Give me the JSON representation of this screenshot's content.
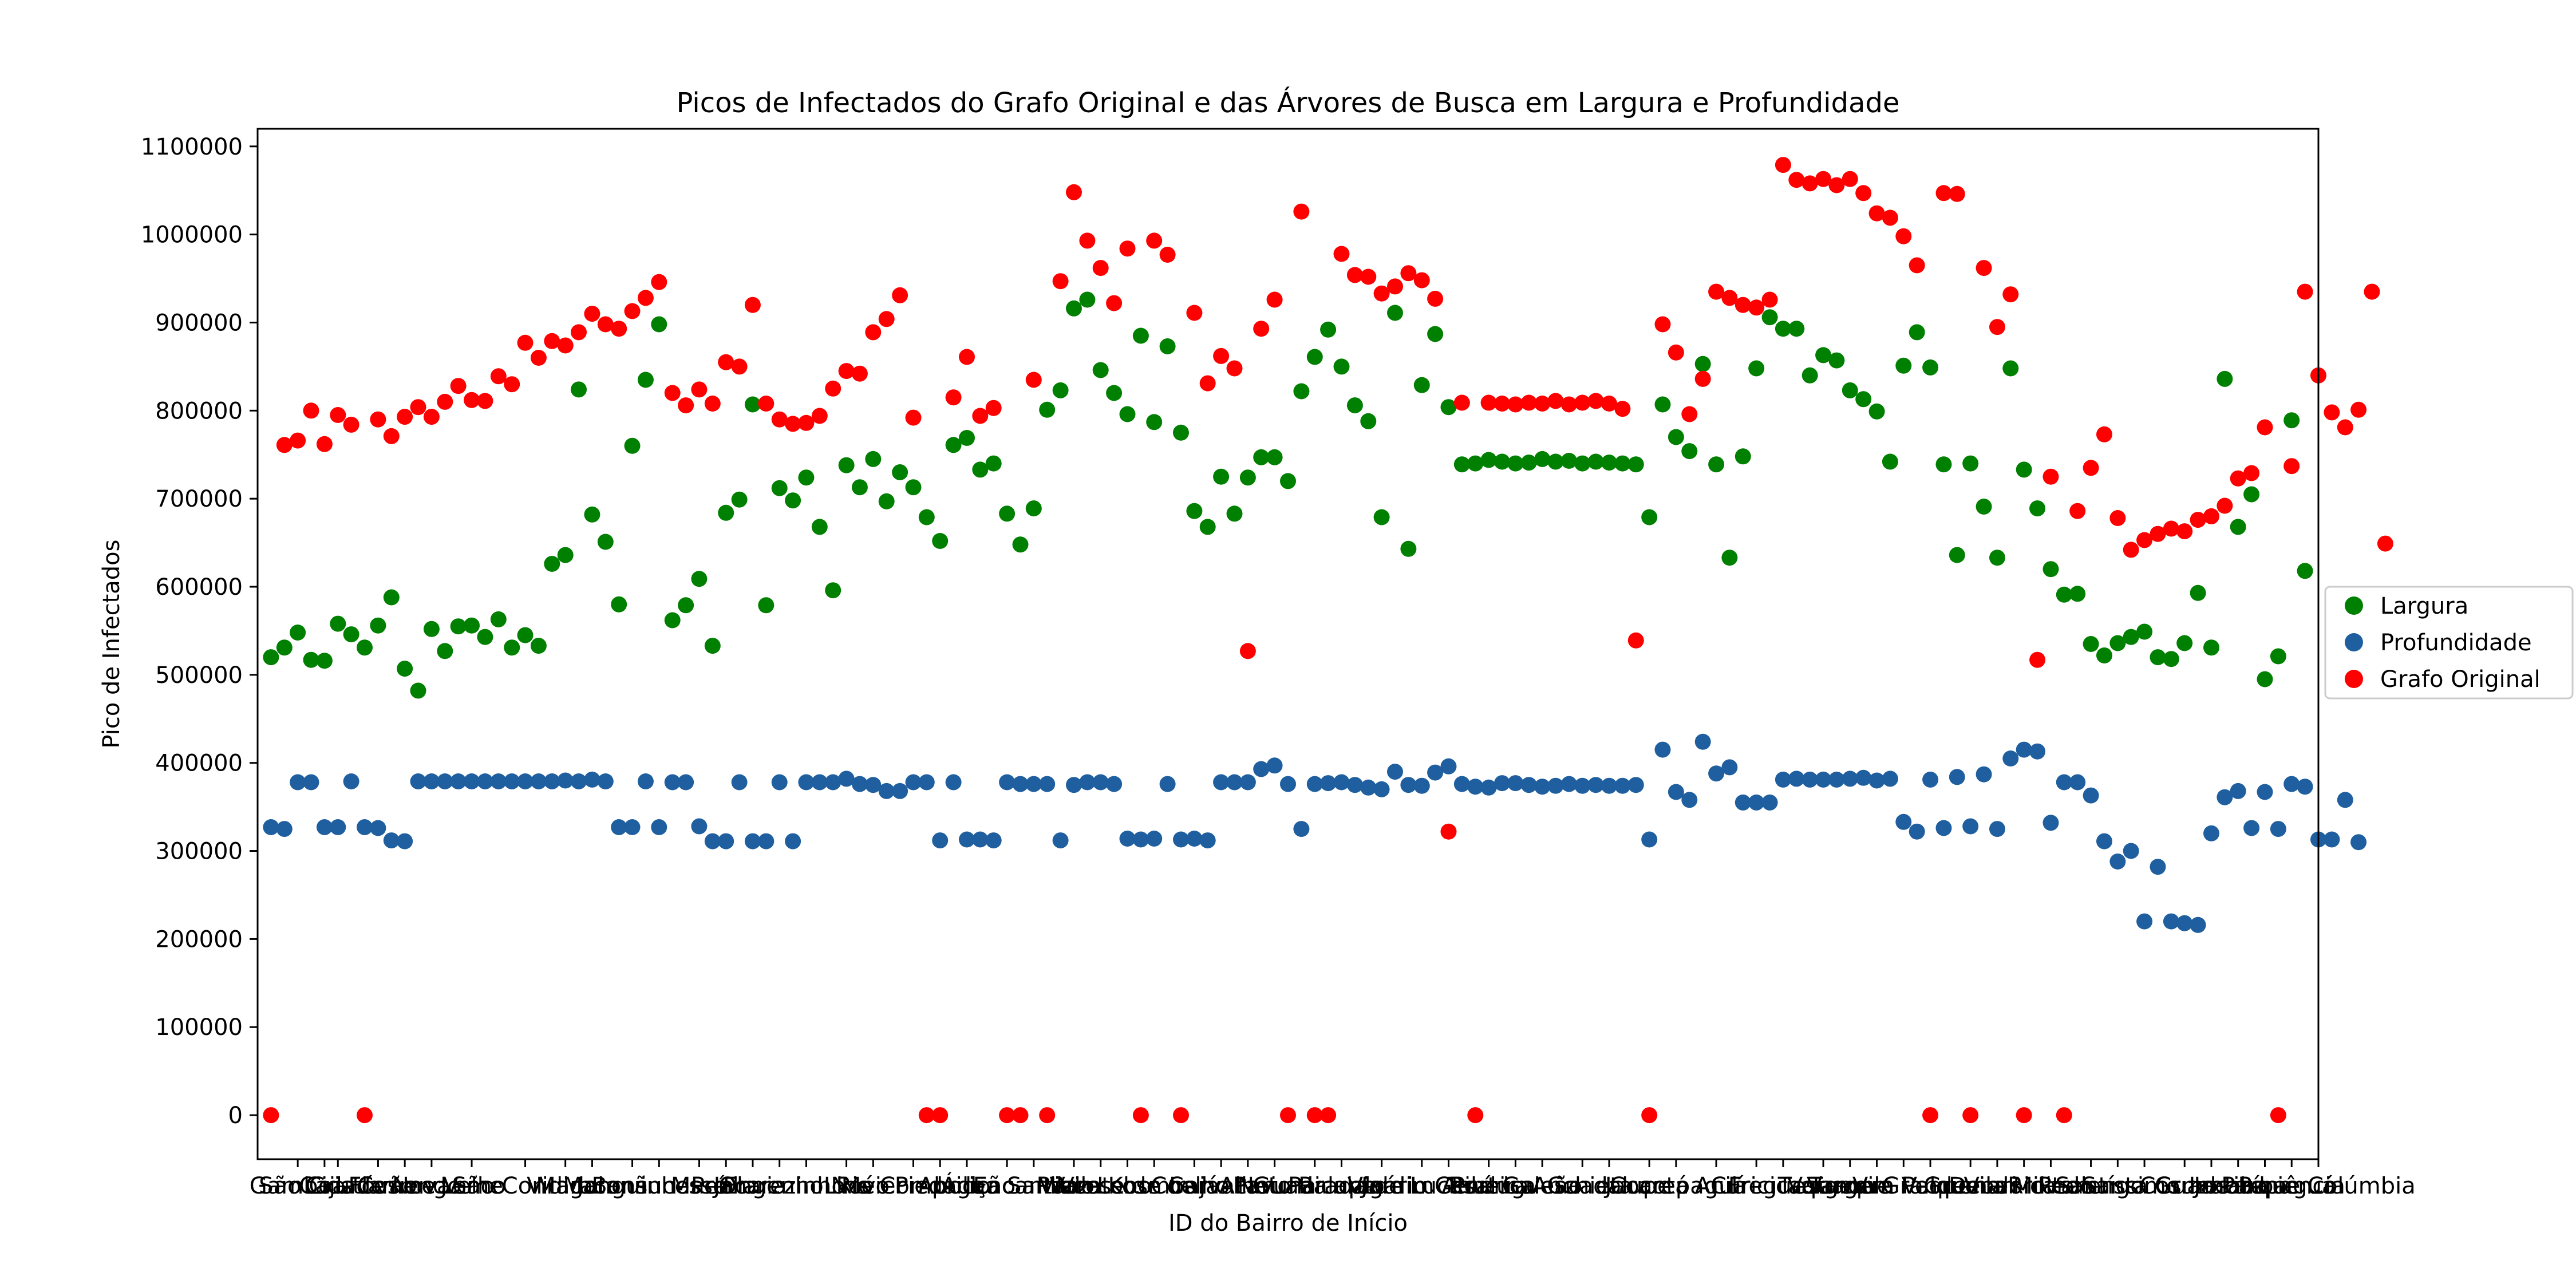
{
  "chart_data": {
    "type": "scatter",
    "title": "Picos de Infectados do Grafo Original e das Árvores de Busca em Largura e Profundidade",
    "xlabel": "ID do Bairro de Início",
    "ylabel": "Pico de Infectados",
    "ylim": [
      -50000,
      1120000
    ],
    "yticks": [
      0,
      100000,
      200000,
      300000,
      400000,
      500000,
      600000,
      700000,
      800000,
      900000,
      1000000,
      1100000
    ],
    "ytick_labels": [
      "0",
      "100000",
      "200000",
      "300000",
      "400000",
      "500000",
      "600000",
      "700000",
      "800000",
      "900000",
      "1000000",
      "1100000"
    ],
    "xticks": [
      {
        "x": 3,
        "label": "Gamboa"
      },
      {
        "x": 5,
        "label": "Caju"
      },
      {
        "x": 6,
        "label": "São Cristóvão"
      },
      {
        "x": 9,
        "label": "Cidade Nova"
      },
      {
        "x": 11,
        "label": "Flamengo"
      },
      {
        "x": 13,
        "label": "Cosme Velho"
      },
      {
        "x": 16,
        "label": "Leme"
      },
      {
        "x": 20,
        "label": "São Conrado"
      },
      {
        "x": 23,
        "label": "Vidigal"
      },
      {
        "x": 25,
        "label": "Maracanã"
      },
      {
        "x": 28,
        "label": "Manguinhos"
      },
      {
        "x": 30,
        "label": "Bonsucesso"
      },
      {
        "x": 33,
        "label": "Maré"
      },
      {
        "x": 35,
        "label": "Penha"
      },
      {
        "x": 37,
        "label": "Olaria"
      },
      {
        "x": 39,
        "label": "Jacarezinho"
      },
      {
        "x": 41,
        "label": "Engenho Novo"
      },
      {
        "x": 44,
        "label": "Lins"
      },
      {
        "x": 46,
        "label": "Méier"
      },
      {
        "x": 49,
        "label": "Rio Comprido"
      },
      {
        "x": 51,
        "label": "Piedade"
      },
      {
        "x": 53,
        "label": "Abolição"
      },
      {
        "x": 56,
        "label": "Água Santa"
      },
      {
        "x": 58,
        "label": "Encantado"
      },
      {
        "x": 61,
        "label": "Pilares"
      },
      {
        "x": 63,
        "label": "Vaz Lobo"
      },
      {
        "x": 65,
        "label": "Vila Kosmos"
      },
      {
        "x": 67,
        "label": "Vicente de Carvalho"
      },
      {
        "x": 70,
        "label": "Irajá"
      },
      {
        "x": 72,
        "label": "Coelho Neto"
      },
      {
        "x": 74,
        "label": "Acari"
      },
      {
        "x": 76,
        "label": "Pavuna"
      },
      {
        "x": 79,
        "label": "Guadalupe"
      },
      {
        "x": 81,
        "label": "Ricardo"
      },
      {
        "x": 84,
        "label": "Parada de Lucas"
      },
      {
        "x": 87,
        "label": "Vigário Geral"
      },
      {
        "x": 89,
        "label": "Jardim América"
      },
      {
        "x": 92,
        "label": "Ribeira"
      },
      {
        "x": 94,
        "label": "Portuguesa"
      },
      {
        "x": 96,
        "label": "Galeão"
      },
      {
        "x": 99,
        "label": "Anchieta"
      },
      {
        "x": 101,
        "label": "Guadalupe"
      },
      {
        "x": 104,
        "label": "Cocotá"
      },
      {
        "x": 106,
        "label": "Jacarepaguá"
      },
      {
        "x": 109,
        "label": "Anil"
      },
      {
        "x": 112,
        "label": "Curicica"
      },
      {
        "x": 114,
        "label": "Freguesia"
      },
      {
        "x": 117,
        "label": "Taquara"
      },
      {
        "x": 119,
        "label": "Tanque"
      },
      {
        "x": 121,
        "label": "Vargem Grande"
      },
      {
        "x": 123,
        "label": "Vargem Pequena"
      },
      {
        "x": 125,
        "label": "Vila Valqueire"
      },
      {
        "x": 128,
        "label": "Grumari"
      },
      {
        "x": 130,
        "label": "Deodoro"
      },
      {
        "x": 132,
        "label": "Vila Militar"
      },
      {
        "x": 134,
        "label": "Ricardo"
      },
      {
        "x": 137,
        "label": "Realengo"
      },
      {
        "x": 139,
        "label": "Santíssimo"
      },
      {
        "x": 141,
        "label": "Santa Cruz"
      },
      {
        "x": 144,
        "label": "Cosmos"
      },
      {
        "x": 146,
        "label": "Guaratiba"
      },
      {
        "x": 148,
        "label": "Inhoaíba"
      },
      {
        "x": 150,
        "label": "Jacarepaguá"
      },
      {
        "x": 152,
        "label": "Paciência"
      },
      {
        "x": 154,
        "label": "Parque Colúmbia"
      }
    ],
    "legend_position": "right",
    "grid": false,
    "series": [
      {
        "name": "Largura",
        "color": "#008000",
        "y": [
          520000,
          531000,
          548000,
          517000,
          516000,
          558000,
          546000,
          531000,
          556000,
          588000,
          507000,
          482000,
          552000,
          527000,
          555000,
          556000,
          543000,
          563000,
          531000,
          545000,
          533000,
          626000,
          636000,
          824000,
          682000,
          651000,
          580000,
          760000,
          835000,
          898000,
          562000,
          579000,
          609000,
          533000,
          684000,
          699000,
          807000,
          579000,
          712000,
          698000,
          724000,
          668000,
          596000,
          738000,
          713000,
          745000,
          697000,
          730000,
          713000,
          679000,
          652000,
          761000,
          769000,
          733000,
          740000,
          683000,
          648000,
          689000,
          801000,
          823000,
          916000,
          926000,
          846000,
          820000,
          796000,
          885000,
          787000,
          873000,
          775000,
          686000,
          668000,
          725000,
          683000,
          724000,
          747000,
          747000,
          720000,
          822000,
          861000,
          892000,
          850000,
          806000,
          788000,
          679000,
          911000,
          643000,
          829000,
          887000,
          804000,
          739000,
          740000,
          744000,
          742000,
          740000,
          741000,
          745000,
          742000,
          743000,
          740000,
          742000,
          741000,
          740000,
          739000,
          679000,
          807000,
          770000,
          754000,
          853000,
          739000,
          633000,
          748000,
          848000,
          906000,
          893000,
          893000,
          840000,
          863000,
          857000,
          823000,
          813000,
          799000,
          742000,
          851000,
          889000,
          849000,
          739000,
          636000,
          740000,
          691000,
          633000,
          848000,
          733000,
          689000,
          620000,
          591000,
          592000,
          535000,
          522000,
          536000,
          543000,
          549000,
          520000,
          518000,
          536000,
          593000,
          531000,
          836000,
          668000,
          705000,
          495000,
          521000,
          789000,
          618000
        ]
      },
      {
        "name": "Profundidade",
        "color": "#1f5f9f",
        "y": [
          327000,
          325000,
          378000,
          378000,
          327000,
          327000,
          379000,
          327000,
          326000,
          312000,
          311000,
          379000,
          379000,
          379000,
          379000,
          379000,
          379000,
          379000,
          379000,
          379000,
          379000,
          379000,
          380000,
          379000,
          381000,
          379000,
          327000,
          327000,
          379000,
          327000,
          378000,
          378000,
          328000,
          311000,
          311000,
          378000,
          311000,
          311000,
          378000,
          311000,
          378000,
          378000,
          378000,
          382000,
          376000,
          375000,
          368000,
          368000,
          378000,
          378000,
          312000,
          378000,
          313000,
          313000,
          312000,
          378000,
          376000,
          376000,
          376000,
          312000,
          375000,
          378000,
          378000,
          376000,
          314000,
          313000,
          314000,
          376000,
          313000,
          314000,
          312000,
          378000,
          378000,
          378000,
          393000,
          397000,
          376000,
          325000,
          376000,
          377000,
          378000,
          375000,
          372000,
          370000,
          390000,
          375000,
          374000,
          389000,
          396000,
          376000,
          373000,
          372000,
          377000,
          377000,
          375000,
          373000,
          374000,
          376000,
          374000,
          375000,
          374000,
          374000,
          375000,
          313000,
          415000,
          367000,
          358000,
          424000,
          388000,
          395000,
          355000,
          355000,
          355000,
          381000,
          382000,
          381000,
          381000,
          381000,
          382000,
          383000,
          380000,
          382000,
          333000,
          322000,
          381000,
          326000,
          384000,
          328000,
          387000,
          325000,
          405000,
          415000,
          413000,
          332000,
          378000,
          378000,
          363000,
          311000,
          288000,
          300000,
          220000,
          282000,
          220000,
          218000,
          216000,
          320000,
          361000,
          368000,
          326000,
          367000,
          325000,
          376000,
          373000,
          313000,
          313000,
          358000,
          310000
        ]
      },
      {
        "name": "Grafo Original",
        "color": "#ff0000",
        "y": [
          0,
          761000,
          766000,
          800000,
          762000,
          795000,
          784000,
          0,
          790000,
          771000,
          793000,
          804000,
          793000,
          810000,
          828000,
          812000,
          811000,
          839000,
          830000,
          877000,
          860000,
          879000,
          874000,
          889000,
          910000,
          898000,
          893000,
          913000,
          928000,
          946000,
          820000,
          806000,
          824000,
          808000,
          855000,
          850000,
          920000,
          808000,
          790000,
          785000,
          786000,
          794000,
          825000,
          845000,
          842000,
          889000,
          904000,
          931000,
          792000,
          0,
          0,
          815000,
          861000,
          794000,
          803000,
          0,
          0,
          835000,
          0,
          947000,
          1048000,
          993000,
          962000,
          922000,
          984000,
          0,
          993000,
          977000,
          0,
          911000,
          831000,
          862000,
          848000,
          527000,
          893000,
          926000,
          0,
          1026000,
          0,
          0,
          978000,
          954000,
          952000,
          933000,
          941000,
          956000,
          948000,
          927000,
          322000,
          809000,
          0,
          809000,
          808000,
          807000,
          809000,
          808000,
          811000,
          807000,
          809000,
          811000,
          808000,
          802000,
          539000,
          0,
          898000,
          866000,
          796000,
          836000,
          935000,
          928000,
          920000,
          917000,
          926000,
          1079000,
          1062000,
          1058000,
          1063000,
          1056000,
          1063000,
          1047000,
          1024000,
          1019000,
          998000,
          965000,
          0,
          1047000,
          1046000,
          0,
          962000,
          895000,
          932000,
          0,
          517000,
          725000,
          0,
          686000,
          735000,
          773000,
          678000,
          642000,
          653000,
          660000,
          666000,
          663000,
          676000,
          680000,
          692000,
          723000,
          729000,
          781000,
          0,
          737000,
          935000,
          840000,
          798000,
          781000,
          801000,
          935000,
          649000
        ]
      }
    ]
  }
}
